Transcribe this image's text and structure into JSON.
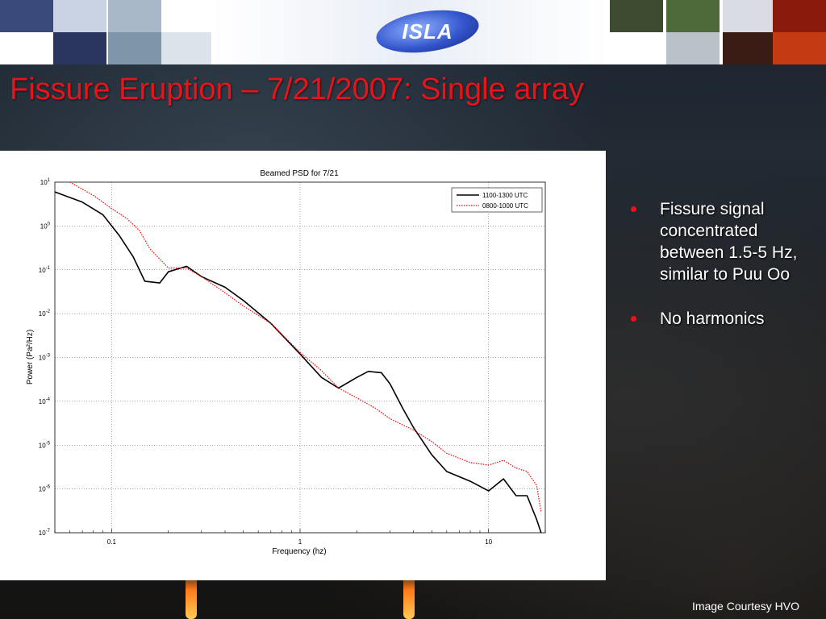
{
  "slide": {
    "title": "Fissure Eruption – 7/21/2007: Single array",
    "logo_text": "ISLA",
    "credit": "Image Courtesy HVO"
  },
  "bullets": [
    {
      "text": "Fissure signal concentrated between 1.5-5 Hz, similar to Puu Oo"
    },
    {
      "text": "No harmonics"
    }
  ],
  "colors": {
    "title": "#e8141c",
    "bullet": "#e8141c",
    "series_1100": "#000000",
    "series_0800": "#ff0000"
  },
  "chart_data": {
    "type": "line",
    "title": "Beamed PSD for 7/21",
    "xlabel": "Frequency (hz)",
    "ylabel": "Power (Pa²/Hz)",
    "xscale": "log",
    "yscale": "log",
    "xlim": [
      0.05,
      20
    ],
    "ylim": [
      1e-07,
      10
    ],
    "grid": true,
    "legend_position": "top-right",
    "x_ticks": [
      {
        "value": 0.1,
        "label": "0.1"
      },
      {
        "value": 1,
        "label": "1"
      },
      {
        "value": 10,
        "label": "10"
      }
    ],
    "y_ticks": [
      {
        "exp": 1,
        "base": "10",
        "sup": "1"
      },
      {
        "exp": 0,
        "base": "10",
        "sup": "0"
      },
      {
        "exp": -1,
        "base": "10",
        "sup": "-1"
      },
      {
        "exp": -2,
        "base": "10",
        "sup": "-2"
      },
      {
        "exp": -3,
        "base": "10",
        "sup": "-3"
      },
      {
        "exp": -4,
        "base": "10",
        "sup": "-4"
      },
      {
        "exp": -5,
        "base": "10",
        "sup": "-5"
      },
      {
        "exp": -6,
        "base": "10",
        "sup": "-6"
      },
      {
        "exp": -7,
        "base": "10",
        "sup": "-7"
      }
    ],
    "series": [
      {
        "name": "1100-1300 UTC",
        "style": "solid",
        "color": "#000000",
        "x": [
          0.05,
          0.07,
          0.09,
          0.11,
          0.13,
          0.15,
          0.18,
          0.2,
          0.25,
          0.3,
          0.4,
          0.5,
          0.7,
          1.0,
          1.3,
          1.6,
          2.0,
          2.3,
          2.7,
          3.0,
          3.5,
          4.0,
          5.0,
          6.0,
          8.0,
          10.0,
          12.0,
          14.0,
          16.0,
          18.0,
          19.0
        ],
        "y": [
          6.0,
          3.5,
          1.8,
          0.6,
          0.2,
          0.055,
          0.05,
          0.09,
          0.12,
          0.07,
          0.04,
          0.02,
          0.006,
          0.0012,
          0.00035,
          0.0002,
          0.00035,
          0.00048,
          0.00045,
          0.00025,
          7e-05,
          2.5e-05,
          6e-06,
          2.5e-06,
          1.5e-06,
          9e-07,
          1.7e-06,
          7e-07,
          7e-07,
          2e-07,
          1e-07
        ]
      },
      {
        "name": "0800-1000 UTC",
        "style": "dotted",
        "color": "#ff0000",
        "x": [
          0.06,
          0.08,
          0.1,
          0.12,
          0.14,
          0.16,
          0.2,
          0.25,
          0.3,
          0.4,
          0.5,
          0.7,
          1.0,
          1.3,
          1.6,
          2.0,
          2.5,
          3.0,
          4.0,
          5.0,
          6.0,
          8.0,
          10.0,
          12.0,
          14.0,
          16.0,
          18.0,
          19.0
        ],
        "y": [
          10.0,
          5.0,
          2.5,
          1.5,
          0.8,
          0.3,
          0.11,
          0.11,
          0.07,
          0.03,
          0.015,
          0.006,
          0.0013,
          0.0005,
          0.0002,
          0.00012,
          7e-05,
          4e-05,
          2.2e-05,
          1.2e-05,
          6.5e-06,
          4e-06,
          3.5e-06,
          4.5e-06,
          3e-06,
          2.5e-06,
          1.2e-06,
          3e-07
        ]
      }
    ]
  }
}
